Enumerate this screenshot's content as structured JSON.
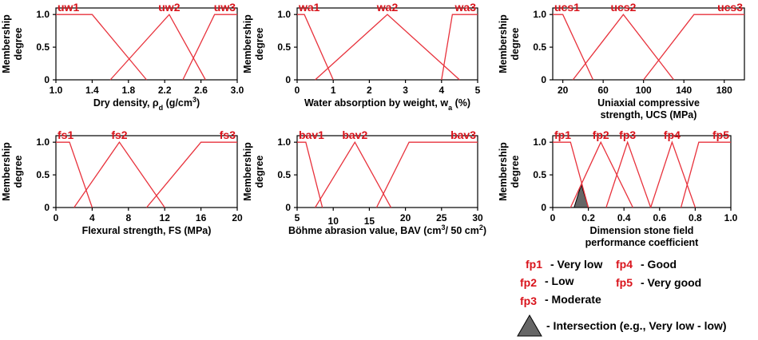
{
  "colors": {
    "curve": "#e8323c",
    "label": "#d9141c",
    "axis": "#000000",
    "intersection": "#666666"
  },
  "chart_data": [
    {
      "type": "line",
      "xlabel": "Dry density, ρd (g/cm3)",
      "ylabel": [
        "Membership",
        "degree"
      ],
      "xlim": [
        1.0,
        3.0
      ],
      "ylim": [
        0,
        1.1
      ],
      "xticks": [
        "1.0",
        "1.4",
        "1.8",
        "2.2",
        "2.6",
        "3.0"
      ],
      "yticks": [
        "0",
        "0.5",
        "1.0"
      ],
      "grid": false,
      "series": [
        {
          "name": "uw1",
          "x": [
            1.0,
            1.4,
            2.0
          ],
          "y": [
            1,
            1,
            0
          ]
        },
        {
          "name": "uw2",
          "x": [
            1.6,
            2.25,
            2.65
          ],
          "y": [
            0,
            1,
            0
          ]
        },
        {
          "name": "uw3",
          "x": [
            2.4,
            2.75,
            3.0
          ],
          "y": [
            0,
            1,
            1
          ]
        }
      ]
    },
    {
      "type": "line",
      "xlabel": "Water absorption by weight, wa (%)",
      "ylabel": [
        "Membership",
        "degree"
      ],
      "xlim": [
        0,
        5
      ],
      "ylim": [
        0,
        1.1
      ],
      "xticks": [
        "0",
        "1",
        "2",
        "3",
        "4",
        "5"
      ],
      "yticks": [
        "0",
        "0.5",
        "1.0"
      ],
      "grid": false,
      "series": [
        {
          "name": "wa1",
          "x": [
            0,
            0.2,
            1.0
          ],
          "y": [
            1,
            1,
            0
          ]
        },
        {
          "name": "wa2",
          "x": [
            0.5,
            2.5,
            4.5
          ],
          "y": [
            0,
            1,
            0
          ]
        },
        {
          "name": "wa3",
          "x": [
            4.0,
            4.3,
            5.0
          ],
          "y": [
            0,
            1,
            1
          ]
        }
      ]
    },
    {
      "type": "line",
      "xlabel": [
        "Uniaxial compressive",
        "strength, UCS (MPa)"
      ],
      "ylabel": [
        "Membership",
        "degree"
      ],
      "xlim": [
        10,
        200
      ],
      "ylim": [
        0,
        1.1
      ],
      "xticks": [
        "20",
        "60",
        "100",
        "140",
        "180"
      ],
      "yticks": [
        "0",
        "0.5",
        "1.0"
      ],
      "grid": false,
      "series": [
        {
          "name": "ucs1",
          "x": [
            10,
            20,
            50
          ],
          "y": [
            1,
            1,
            0
          ]
        },
        {
          "name": "ucs2",
          "x": [
            30,
            80,
            130
          ],
          "y": [
            0,
            1,
            0
          ]
        },
        {
          "name": "ucs3",
          "x": [
            100,
            150,
            200
          ],
          "y": [
            0,
            1,
            1
          ]
        }
      ]
    },
    {
      "type": "line",
      "xlabel": "Flexural strength, FS (MPa)",
      "ylabel": [
        "Membership",
        "degree"
      ],
      "xlim": [
        0,
        20
      ],
      "ylim": [
        0,
        1.1
      ],
      "xticks": [
        "0",
        "4",
        "8",
        "12",
        "16",
        "20"
      ],
      "yticks": [
        "0",
        "0.5",
        "1.0"
      ],
      "grid": false,
      "series": [
        {
          "name": "fs1",
          "x": [
            0,
            1.5,
            4.0
          ],
          "y": [
            1,
            1,
            0
          ]
        },
        {
          "name": "fs2",
          "x": [
            2.0,
            7.0,
            12.0
          ],
          "y": [
            0,
            1,
            0
          ]
        },
        {
          "name": "fs3",
          "x": [
            10.0,
            16.0,
            20.0
          ],
          "y": [
            0,
            1,
            1
          ]
        }
      ]
    },
    {
      "type": "line",
      "xlabel": "Böhme abrasion value, BAV (cm3/ 50 cm2)",
      "ylabel": [
        "Membership",
        "degree"
      ],
      "xlim": [
        5,
        30
      ],
      "ylim": [
        0,
        1.1
      ],
      "xticks": [
        "5",
        "10",
        "15",
        "20",
        "25",
        "30"
      ],
      "yticks": [
        "0",
        "0.5",
        "1.0"
      ],
      "grid": false,
      "series": [
        {
          "name": "bav1",
          "x": [
            5,
            6.2,
            8.5
          ],
          "y": [
            1,
            1,
            0
          ]
        },
        {
          "name": "bav2",
          "x": [
            7.5,
            13.0,
            18.0
          ],
          "y": [
            0,
            1,
            0
          ]
        },
        {
          "name": "bav3",
          "x": [
            16.0,
            20.5,
            30.0
          ],
          "y": [
            0,
            1,
            1
          ]
        }
      ]
    },
    {
      "type": "line",
      "xlabel": [
        "Dimension stone field",
        "performance coefficient"
      ],
      "ylabel": [
        "Membership",
        "degree"
      ],
      "xlim": [
        0,
        1.0
      ],
      "ylim": [
        0,
        1.1
      ],
      "xticks": [
        "0",
        "0.2",
        "0.4",
        "0.6",
        "0.8",
        "1.0"
      ],
      "yticks": [
        "0",
        "0.5",
        "1.0"
      ],
      "grid": false,
      "series": [
        {
          "name": "fp1",
          "x": [
            0,
            0.1,
            0.2
          ],
          "y": [
            1,
            1,
            0
          ]
        },
        {
          "name": "fp2",
          "x": [
            0.1,
            0.27,
            0.45
          ],
          "y": [
            0,
            1,
            0
          ]
        },
        {
          "name": "fp3",
          "x": [
            0.3,
            0.42,
            0.55
          ],
          "y": [
            0,
            1,
            0
          ]
        },
        {
          "name": "fp4",
          "x": [
            0.55,
            0.67,
            0.8
          ],
          "y": [
            0,
            1,
            0
          ]
        },
        {
          "name": "fp5",
          "x": [
            0.72,
            0.82,
            1.0
          ],
          "y": [
            0,
            1,
            1
          ]
        }
      ],
      "intersection": {
        "x": [
          0.12,
          0.16,
          0.2
        ],
        "y": [
          0,
          0.35,
          0
        ]
      }
    }
  ],
  "legend": {
    "items": [
      {
        "code": "fp1",
        "text": "- Very low"
      },
      {
        "code": "fp4",
        "text": "- Good"
      },
      {
        "code": "fp2",
        "text": "- Low"
      },
      {
        "code": "fp5",
        "text": "- Very good"
      },
      {
        "code": "fp3",
        "text": "- Moderate"
      }
    ],
    "intersection_text": "- Intersection (e.g., Very low - low)"
  }
}
